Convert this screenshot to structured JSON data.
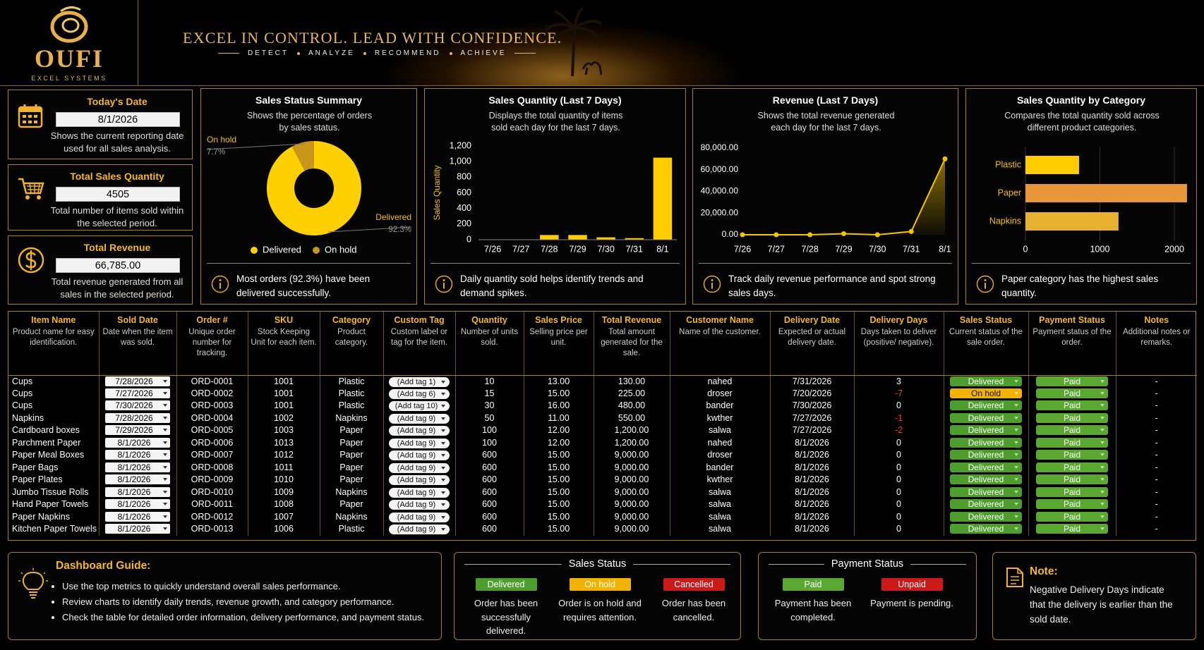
{
  "header": {
    "brand": "OUFI",
    "brand_sub": "EXCEL SYSTEMS",
    "tagline": "EXCEL IN CONTROL. LEAD WITH CONFIDENCE.",
    "motto": [
      "DETECT",
      "ANALYZE",
      "RECOMMEND",
      "ACHIEVE"
    ]
  },
  "kpis": [
    {
      "title": "Today's Date",
      "value": "8/1/2026",
      "desc": "Shows the current reporting date used for all sales analysis."
    },
    {
      "title": "Total Sales Quantity",
      "value": "4505",
      "desc": "Total number of items sold within the selected period."
    },
    {
      "title": "Total Revenue",
      "value": "66,785.00",
      "desc": "Total revenue generated from all sales in the selected period."
    }
  ],
  "chart_data": [
    {
      "type": "pie",
      "title": "Sales Status Summary",
      "subtitle": "Shows the percentage of orders by sales status.",
      "categories": [
        "Delivered",
        "On hold"
      ],
      "values": [
        92.3,
        7.7
      ],
      "value_labels": [
        "92.3%",
        "7.7%"
      ],
      "colors": [
        "#ffd000",
        "#c9961a"
      ],
      "insight": "Most orders (92.3%) have been delivered successfully."
    },
    {
      "type": "bar",
      "title": "Sales Quantity (Last 7 Days)",
      "subtitle": "Displays the total quantity of items sold each day for the last 7 days.",
      "ylabel": "Sales Quantity",
      "categories": [
        "7/26",
        "7/27",
        "7/28",
        "7/29",
        "7/30",
        "7/31",
        "8/1"
      ],
      "values": [
        0,
        0,
        60,
        60,
        30,
        20,
        1050
      ],
      "color": "#ffcc00",
      "ylim": [
        0,
        1200
      ],
      "yticks": [
        0,
        200,
        400,
        600,
        800,
        {
          "value": 1000,
          "label": "1,000"
        },
        {
          "value": 1200,
          "label": "1,200"
        }
      ],
      "grid": false,
      "insight": "Daily quantity sold helps identify trends and demand spikes."
    },
    {
      "type": "line",
      "title": "Revenue (Last 7 Days)",
      "subtitle": "Shows the total revenue generated each day for the last 7 days.",
      "categories": [
        "7/26",
        "7/27",
        "7/28",
        "7/29",
        "7/30",
        "7/31",
        "8/1"
      ],
      "values": [
        0,
        0,
        0,
        1000,
        0,
        3000,
        70000
      ],
      "color": "#f5c400",
      "ylim": [
        0,
        80000
      ],
      "yticks": [
        {
          "value": 0,
          "label": "0.00"
        },
        {
          "value": 20000,
          "label": "20,000.00"
        },
        {
          "value": 40000,
          "label": "40,000.00"
        },
        {
          "value": 60000,
          "label": "60,000.00"
        },
        {
          "value": 80000,
          "label": "80,000.00"
        }
      ],
      "grid": false,
      "insight": "Track daily revenue performance and spot strong sales days."
    },
    {
      "type": "barh",
      "title": "Sales Quantity by Category",
      "subtitle": "Compares the total quantity sold across different product categories.",
      "categories": [
        "Plastic",
        "Paper",
        "Napkins"
      ],
      "values": [
        720,
        2170,
        1250
      ],
      "colors": [
        "#ffcc00",
        "#e8963a",
        "#e8b030"
      ],
      "xlim": [
        0,
        2200
      ],
      "xticks": [
        0,
        1000,
        2000
      ],
      "grid": true,
      "insight": "Paper category has the highest sales quantity."
    }
  ],
  "table": {
    "columns": [
      {
        "name": "Item Name",
        "desc": "Product name for easy identification."
      },
      {
        "name": "Sold Date",
        "desc": "Date when the item was sold."
      },
      {
        "name": "Order #",
        "desc": "Unique order number for tracking."
      },
      {
        "name": "SKU",
        "desc": "Stock Keeping Unit for each item."
      },
      {
        "name": "Category",
        "desc": "Product category."
      },
      {
        "name": "Custom Tag",
        "desc": "Custom label or tag for the item."
      },
      {
        "name": "Quantity",
        "desc": "Number of units sold."
      },
      {
        "name": "Sales Price",
        "desc": "Selling price per unit."
      },
      {
        "name": "Total Revenue",
        "desc": "Total amount generated for the sale."
      },
      {
        "name": "Customer Name",
        "desc": "Name of the customer."
      },
      {
        "name": "Delivery Date",
        "desc": "Expected or actual delivery date."
      },
      {
        "name": "Delivery Days",
        "desc": "Days taken to deliver (positive/ negative)."
      },
      {
        "name": "Sales Status",
        "desc": "Current status of the sale order."
      },
      {
        "name": "Payment Status",
        "desc": "Payment status of the order."
      },
      {
        "name": "Notes",
        "desc": "Additional notes or remarks."
      }
    ],
    "rows": [
      [
        "Cups",
        "7/28/2026",
        "ORD-0001",
        "1001",
        "Plastic",
        "(Add tag 1)",
        "10",
        "13.00",
        "130.00",
        "nahed",
        "7/31/2026",
        "3",
        "Delivered",
        "Paid",
        "-"
      ],
      [
        "Cups",
        "7/27/2026",
        "ORD-0002",
        "1001",
        "Plastic",
        "(Add tag 6)",
        "15",
        "15.00",
        "225.00",
        "droser",
        "7/20/2026",
        "-7",
        "On hold",
        "Paid",
        "-"
      ],
      [
        "Cups",
        "7/30/2026",
        "ORD-0003",
        "1001",
        "Plastic",
        "(Add tag 10)",
        "30",
        "16.00",
        "480.00",
        "bander",
        "7/30/2026",
        "0",
        "Delivered",
        "Paid",
        "-"
      ],
      [
        "Napkins",
        "7/28/2026",
        "ORD-0004",
        "1002",
        "Napkins",
        "(Add tag 9)",
        "50",
        "11.00",
        "550.00",
        "kwther",
        "7/27/2026",
        "-1",
        "Delivered",
        "Paid",
        "-"
      ],
      [
        "Cardboard boxes",
        "7/29/2026",
        "ORD-0005",
        "1003",
        "Paper",
        "(Add tag 9)",
        "100",
        "12.00",
        "1,200.00",
        "salwa",
        "7/27/2026",
        "-2",
        "Delivered",
        "Paid",
        "-"
      ],
      [
        "Parchment Paper",
        "8/1/2026",
        "ORD-0006",
        "1013",
        "Paper",
        "(Add tag 9)",
        "100",
        "12.00",
        "1,200.00",
        "nahed",
        "8/1/2026",
        "0",
        "Delivered",
        "Paid",
        "-"
      ],
      [
        "Paper Meal Boxes",
        "8/1/2026",
        "ORD-0007",
        "1012",
        "Paper",
        "(Add tag 9)",
        "600",
        "15.00",
        "9,000.00",
        "droser",
        "8/1/2026",
        "0",
        "Delivered",
        "Paid",
        "-"
      ],
      [
        "Paper Bags",
        "8/1/2026",
        "ORD-0008",
        "1011",
        "Paper",
        "(Add tag 9)",
        "600",
        "15.00",
        "9,000.00",
        "bander",
        "8/1/2026",
        "0",
        "Delivered",
        "Paid",
        "-"
      ],
      [
        "Paper Plates",
        "8/1/2026",
        "ORD-0009",
        "1010",
        "Paper",
        "(Add tag 9)",
        "600",
        "15.00",
        "9,000.00",
        "kwther",
        "8/1/2026",
        "0",
        "Delivered",
        "Paid",
        "-"
      ],
      [
        "Jumbo Tissue Rolls",
        "8/1/2026",
        "ORD-0010",
        "1009",
        "Napkins",
        "(Add tag 9)",
        "600",
        "15.00",
        "9,000.00",
        "salwa",
        "8/1/2026",
        "0",
        "Delivered",
        "Paid",
        "-"
      ],
      [
        "Hand Paper Towels",
        "8/1/2026",
        "ORD-0011",
        "1008",
        "Paper",
        "(Add tag 9)",
        "600",
        "15.00",
        "9,000.00",
        "salwa",
        "8/1/2026",
        "0",
        "Delivered",
        "Paid",
        "-"
      ],
      [
        "Paper Napkins",
        "8/1/2026",
        "ORD-0012",
        "1007",
        "Napkins",
        "(Add tag 9)",
        "600",
        "15.00",
        "9,000.00",
        "salwa",
        "8/1/2026",
        "0",
        "Delivered",
        "Paid",
        "-"
      ],
      [
        "Kitchen Paper Towels",
        "8/1/2026",
        "ORD-0013",
        "1006",
        "Plastic",
        "(Add tag 9)",
        "600",
        "15.00",
        "9,000.00",
        "salwa",
        "8/1/2026",
        "0",
        "Delivered",
        "Paid",
        "-"
      ]
    ]
  },
  "guide": {
    "title": "Dashboard Guide:",
    "items": [
      "Use the top metrics to quickly understand overall sales performance.",
      "Review charts to identify daily trends, revenue growth, and category performance.",
      "Check the table for detailed order information, delivery performance, and payment status."
    ]
  },
  "sales_status": {
    "title": "Sales Status",
    "items": [
      {
        "label": "Delivered",
        "desc": "Order has been successfully delivered.",
        "color": "#4e9e2e"
      },
      {
        "label": "On hold",
        "desc": "Order is on hold and requires attention.",
        "color": "#f2b300"
      },
      {
        "label": "Cancelled",
        "desc": "Order has been cancelled.",
        "color": "#cc1a1a"
      }
    ]
  },
  "payment_status": {
    "title": "Payment Status",
    "items": [
      {
        "label": "Paid",
        "desc": "Payment has been completed.",
        "color": "#5aa832"
      },
      {
        "label": "Unpaid",
        "desc": "Payment is pending.",
        "color": "#cc1a1a"
      }
    ]
  },
  "note": {
    "title": "Note:",
    "text": "Negative Delivery Days indicate that the delivery is earlier than the sold date."
  }
}
